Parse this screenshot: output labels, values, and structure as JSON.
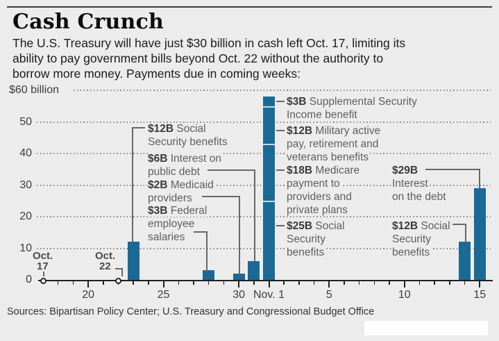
{
  "header": {
    "title": "Cash Crunch",
    "subtitle_lines": [
      "The U.S. Treasury will have just $30 billion in cash left Oct. 17, limiting its",
      "ability to pay government bills beyond Oct. 22 without the authority to",
      "borrow more money. Payments due in coming weeks:"
    ]
  },
  "footer": {
    "sources": "Sources: Bipartisan Policy Center; U.S. Treasury and Congressional Budget Office"
  },
  "colors": {
    "background": "#ececec",
    "bar": "#1b6a96",
    "bar_divider": "#c8dae5",
    "axis": "#1f1f1f",
    "grid_dot": "#8a8a8a",
    "leader": "#676767",
    "annotation_value": "#3a3a3a",
    "annotation_text": "#5f5f5f"
  },
  "chart_data": {
    "type": "bar",
    "title": "Cash Crunch",
    "ylabel": "$ billions",
    "ylim": [
      0,
      60
    ],
    "grid": "dotted-horizontal",
    "y_axis": {
      "top_label": "$60 billion",
      "ticks": [
        0,
        10,
        20,
        30,
        40,
        50
      ]
    },
    "x_axis": {
      "start_date": "Oct. 17",
      "end_date": "Nov. 15",
      "major_ticks": [
        {
          "label": "20",
          "day": 3
        },
        {
          "label": "25",
          "day": 8
        },
        {
          "label": "30",
          "day": 13
        },
        {
          "label": "Nov. 1",
          "day": 15
        },
        {
          "label": "5",
          "day": 19
        },
        {
          "label": "10",
          "day": 24
        },
        {
          "label": "15",
          "day": 29
        }
      ]
    },
    "markers": [
      {
        "month": "Oct.",
        "day_label": "17",
        "day": 0,
        "value": 0
      },
      {
        "month": "Oct.",
        "day_label": "22",
        "day": 5,
        "value": 0
      }
    ],
    "bars": [
      {
        "date": "Oct. 23",
        "day": 6,
        "segments": [
          {
            "value": 12,
            "label": "Social Security benefits"
          }
        ]
      },
      {
        "date": "Oct. 28",
        "day": 11,
        "segments": [
          {
            "value": 3,
            "label": "Federal employee salaries"
          }
        ]
      },
      {
        "date": "Oct. 30",
        "day": 13,
        "segments": [
          {
            "value": 2,
            "label": "Medicaid providers"
          }
        ]
      },
      {
        "date": "Oct. 31",
        "day": 14,
        "segments": [
          {
            "value": 6,
            "label": "Interest on public debt"
          }
        ]
      },
      {
        "date": "Nov. 1",
        "day": 15,
        "segments": [
          {
            "value": 25,
            "label": "Social Security benefits"
          },
          {
            "value": 18,
            "label": "Medicare payment to providers and private plans"
          },
          {
            "value": 12,
            "label": "Military active pay, retirement and veterans benefits"
          },
          {
            "value": 3,
            "label": "Supplemental Security Income benefit"
          }
        ]
      },
      {
        "date": "Nov. 14",
        "day": 28,
        "segments": [
          {
            "value": 12,
            "label": "Social Security benefits"
          }
        ]
      },
      {
        "date": "Nov. 15",
        "day": 29,
        "segments": [
          {
            "value": 29,
            "label": "Interest on the debt"
          }
        ]
      }
    ],
    "annotations": [
      {
        "id": "ss12",
        "value": "$12B",
        "lines": [
          "Social",
          "Security benefits"
        ]
      },
      {
        "id": "int6",
        "value": "$6B",
        "lines": [
          "Interest on",
          "public debt"
        ]
      },
      {
        "id": "med2",
        "value": "$2B",
        "lines": [
          "Medicaid",
          "providers"
        ]
      },
      {
        "id": "fed3",
        "value": "$3B",
        "lines": [
          "Federal",
          "employee",
          "salaries"
        ]
      },
      {
        "id": "ssi3",
        "value": "$3B",
        "lines": [
          "Supplemental Security",
          "Income benefit"
        ]
      },
      {
        "id": "mil12",
        "value": "$12B",
        "lines": [
          "Military active",
          "pay, retirement and",
          "veterans benefits"
        ]
      },
      {
        "id": "medc18",
        "value": "$18B",
        "lines": [
          "Medicare",
          "payment to",
          "providers and",
          "private plans"
        ]
      },
      {
        "id": "ss25",
        "value": "$25B",
        "lines": [
          "Social",
          "Security",
          "benefits"
        ]
      },
      {
        "id": "int29",
        "value": "$29B",
        "lines": [
          "Interest",
          "on the debt"
        ]
      },
      {
        "id": "ss12b",
        "value": "$12B",
        "lines": [
          "Social",
          "Security",
          "benefits"
        ]
      }
    ]
  }
}
